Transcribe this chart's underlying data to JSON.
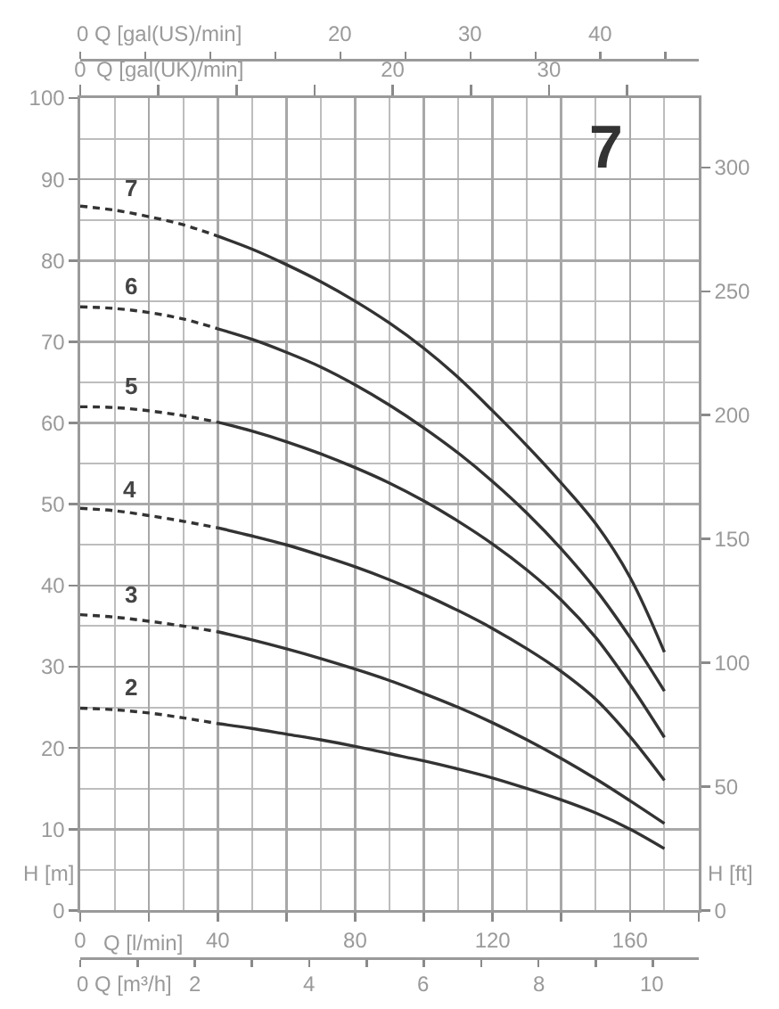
{
  "chart_data": {
    "type": "line",
    "title": "7",
    "xlabel": "Q [l/min]",
    "ylabel": "H [m]",
    "y2label": "H [ft]",
    "x2label": "Q [gal(UK)/min]",
    "xlim": [
      0,
      180
    ],
    "xticks": [
      0,
      {
        "value": 20,
        "label": null
      },
      40,
      {
        "value": 60,
        "label": null
      },
      80,
      {
        "value": 100,
        "label": null
      },
      120,
      {
        "value": 140,
        "label": null
      },
      160,
      {
        "value": 180,
        "label": null
      }
    ],
    "ylim": [
      0,
      100
    ],
    "yticks": [
      0,
      10,
      20,
      30,
      40,
      50,
      60,
      70,
      80,
      90,
      100
    ],
    "y2lim": [
      0,
      328.08
    ],
    "y2ticks": [
      0,
      50,
      100,
      150,
      200,
      250,
      300
    ],
    "x2lim": [
      0,
      39.59
    ],
    "x2ticks": [
      0,
      {
        "value": 5,
        "label": null
      },
      {
        "value": 10,
        "label": null
      },
      {
        "value": 15,
        "label": null
      },
      20,
      {
        "value": 25,
        "label": null
      },
      30,
      {
        "value": 35,
        "label": null
      }
    ],
    "annotations": [
      "0 Q [gal(US)/min]",
      "20",
      "30",
      "40",
      "0 Q [m³/h]",
      "2",
      "4",
      "6",
      "8",
      "10"
    ],
    "grid": true,
    "series": [
      {
        "name": "7",
        "color": "#333333",
        "line_style": "dashed",
        "x": [
          0,
          10,
          20,
          30,
          40
        ],
        "values": [
          86.7,
          86.2,
          85.4,
          84.4,
          83.0
        ]
      },
      {
        "color": "#333333",
        "line_style": "solid",
        "x": [
          40,
          50,
          60,
          70,
          80,
          90,
          100,
          110,
          120,
          130,
          140,
          150,
          160,
          170
        ],
        "values": [
          83.0,
          81.4,
          79.5,
          77.4,
          75.0,
          72.3,
          69.2,
          65.6,
          61.5,
          57.2,
          52.6,
          47.6,
          41.0,
          31.8
        ]
      },
      {
        "name": "6",
        "color": "#333333",
        "line_style": "dashed",
        "x": [
          0,
          10,
          20,
          30,
          40
        ],
        "values": [
          74.3,
          74.1,
          73.6,
          72.8,
          71.6
        ]
      },
      {
        "color": "#333333",
        "line_style": "solid",
        "x": [
          40,
          50,
          60,
          70,
          80,
          90,
          100,
          110,
          120,
          130,
          140,
          150,
          160,
          170
        ],
        "values": [
          71.6,
          70.3,
          68.7,
          66.9,
          64.7,
          62.2,
          59.4,
          56.3,
          52.8,
          48.9,
          44.5,
          39.5,
          33.6,
          27.0
        ]
      },
      {
        "name": "5",
        "color": "#333333",
        "line_style": "dashed",
        "x": [
          0,
          10,
          20,
          30,
          40
        ],
        "values": [
          62.0,
          61.9,
          61.5,
          60.9,
          60.1
        ]
      },
      {
        "color": "#333333",
        "line_style": "solid",
        "x": [
          40,
          50,
          60,
          70,
          80,
          90,
          100,
          110,
          120,
          130,
          140,
          150,
          160,
          170
        ],
        "values": [
          60.1,
          59.0,
          57.7,
          56.2,
          54.5,
          52.6,
          50.4,
          47.9,
          45.1,
          41.9,
          38.2,
          33.6,
          27.8,
          21.3
        ]
      },
      {
        "name": "4",
        "color": "#333333",
        "line_style": "dashed",
        "x": [
          0,
          10,
          20,
          30,
          40
        ],
        "values": [
          49.5,
          49.2,
          48.6,
          47.9,
          47.1
        ]
      },
      {
        "color": "#333333",
        "line_style": "solid",
        "x": [
          40,
          50,
          60,
          70,
          80,
          90,
          100,
          110,
          120,
          130,
          140,
          150,
          160,
          170
        ],
        "values": [
          47.1,
          46.1,
          45.0,
          43.7,
          42.3,
          40.7,
          38.9,
          36.9,
          34.7,
          32.2,
          29.4,
          26.0,
          21.4,
          16.0
        ]
      },
      {
        "name": "3",
        "color": "#333333",
        "line_style": "dashed",
        "x": [
          0,
          10,
          20,
          30,
          40
        ],
        "values": [
          36.4,
          36.1,
          35.6,
          35.0,
          34.3
        ]
      },
      {
        "color": "#333333",
        "line_style": "solid",
        "x": [
          40,
          50,
          60,
          70,
          80,
          90,
          100,
          110,
          120,
          130,
          140,
          150,
          160,
          170
        ],
        "values": [
          34.3,
          33.3,
          32.2,
          31.0,
          29.7,
          28.3,
          26.7,
          25.0,
          23.1,
          21.0,
          18.7,
          16.2,
          13.5,
          10.7
        ]
      },
      {
        "name": "2",
        "color": "#333333",
        "line_style": "dashed",
        "x": [
          0,
          10,
          20,
          30,
          40
        ],
        "values": [
          24.9,
          24.7,
          24.3,
          23.7,
          23.0
        ]
      },
      {
        "color": "#333333",
        "line_style": "solid",
        "x": [
          40,
          50,
          60,
          70,
          80,
          90,
          100,
          110,
          120,
          130,
          140,
          150,
          160,
          170
        ],
        "values": [
          23.0,
          22.4,
          21.7,
          21.0,
          20.2,
          19.3,
          18.4,
          17.4,
          16.3,
          15.0,
          13.6,
          12.0,
          10.0,
          7.6
        ]
      }
    ]
  }
}
